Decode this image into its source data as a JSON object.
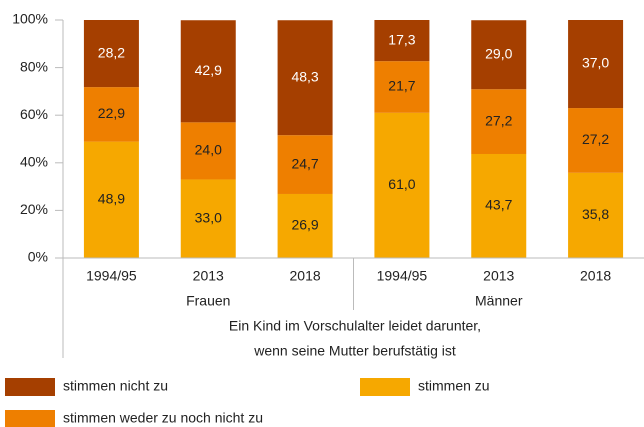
{
  "chart_data": {
    "type": "stacked_bar",
    "categories": [
      "1994/95",
      "2013",
      "2018",
      "1994/95",
      "2013",
      "2018"
    ],
    "groups": [
      "Frauen",
      "Männer"
    ],
    "xlabel": [
      "Ein Kind im Vorschulalter leidet darunter,",
      "wenn seine Mutter berufstätig ist"
    ],
    "series": [
      {
        "name": "stimmen zu",
        "color": "#f6a800",
        "values": [
          48.9,
          33.0,
          26.9,
          61.0,
          43.7,
          35.8
        ],
        "value_labels": [
          "48,9",
          "33,0",
          "26,9",
          "61,0",
          "43,7",
          "35,8"
        ]
      },
      {
        "name": "stimmen weder zu noch nicht zu",
        "color": "#ee7f00",
        "values": [
          22.9,
          24.0,
          24.7,
          21.7,
          27.2,
          27.2
        ],
        "value_labels": [
          "22,9",
          "24,0",
          "24,7",
          "21,7",
          "27,2",
          "27,2"
        ]
      },
      {
        "name": "stimmen nicht zu",
        "color": "#a53f00",
        "values": [
          28.2,
          42.9,
          48.3,
          17.3,
          29.0,
          37.0
        ],
        "value_labels": [
          "28,2",
          "42,9",
          "48,3",
          "17,3",
          "29,0",
          "37,0"
        ]
      }
    ],
    "ylim": [
      0,
      100
    ],
    "yticks": [
      {
        "value": 0,
        "label": "0%"
      },
      {
        "value": 20,
        "label": "20%"
      },
      {
        "value": 40,
        "label": "40%"
      },
      {
        "value": 60,
        "label": "60%"
      },
      {
        "value": 80,
        "label": "80%"
      },
      {
        "value": 100,
        "label": "100%"
      }
    ]
  }
}
